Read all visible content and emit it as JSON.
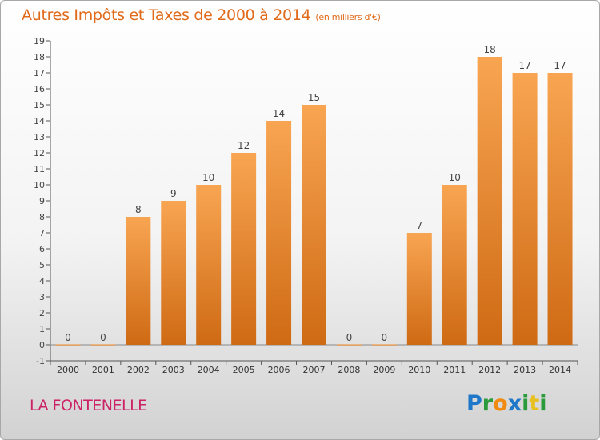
{
  "title": "Autres Impôts et Taxes de 2000 à 2014",
  "title_unit": "(en milliers d'€)",
  "place": "LA FONTENELLE",
  "logo_text": "Proxiti",
  "colors": {
    "title": "#e06a1a",
    "place": "#cc2266",
    "bar_light": "#f8a552",
    "bar_dark": "#cf6a14"
  },
  "chart_data": {
    "type": "bar",
    "title": "Autres Impôts et Taxes de 2000 à 2014",
    "subtitle": "(en milliers d'€)",
    "categories": [
      "2000",
      "2001",
      "2002",
      "2003",
      "2004",
      "2005",
      "2006",
      "2007",
      "2008",
      "2009",
      "2010",
      "2011",
      "2012",
      "2013",
      "2014"
    ],
    "values": [
      0,
      0,
      8,
      9,
      10,
      12,
      14,
      15,
      0,
      0,
      7,
      10,
      18,
      17,
      17
    ],
    "data_labels": [
      "0",
      "0",
      "8",
      "9",
      "10",
      "12",
      "14",
      "15",
      "0",
      "0",
      "7",
      "10",
      "18",
      "17",
      "17"
    ],
    "ylim": [
      -1,
      19
    ],
    "yticks": [
      "-1",
      "0",
      "1",
      "2",
      "3",
      "4",
      "5",
      "6",
      "7",
      "8",
      "9",
      "10",
      "11",
      "12",
      "13",
      "14",
      "15",
      "16",
      "17",
      "18",
      "19"
    ],
    "xlabel": "",
    "ylabel": "",
    "grid": false,
    "legend": "none"
  }
}
